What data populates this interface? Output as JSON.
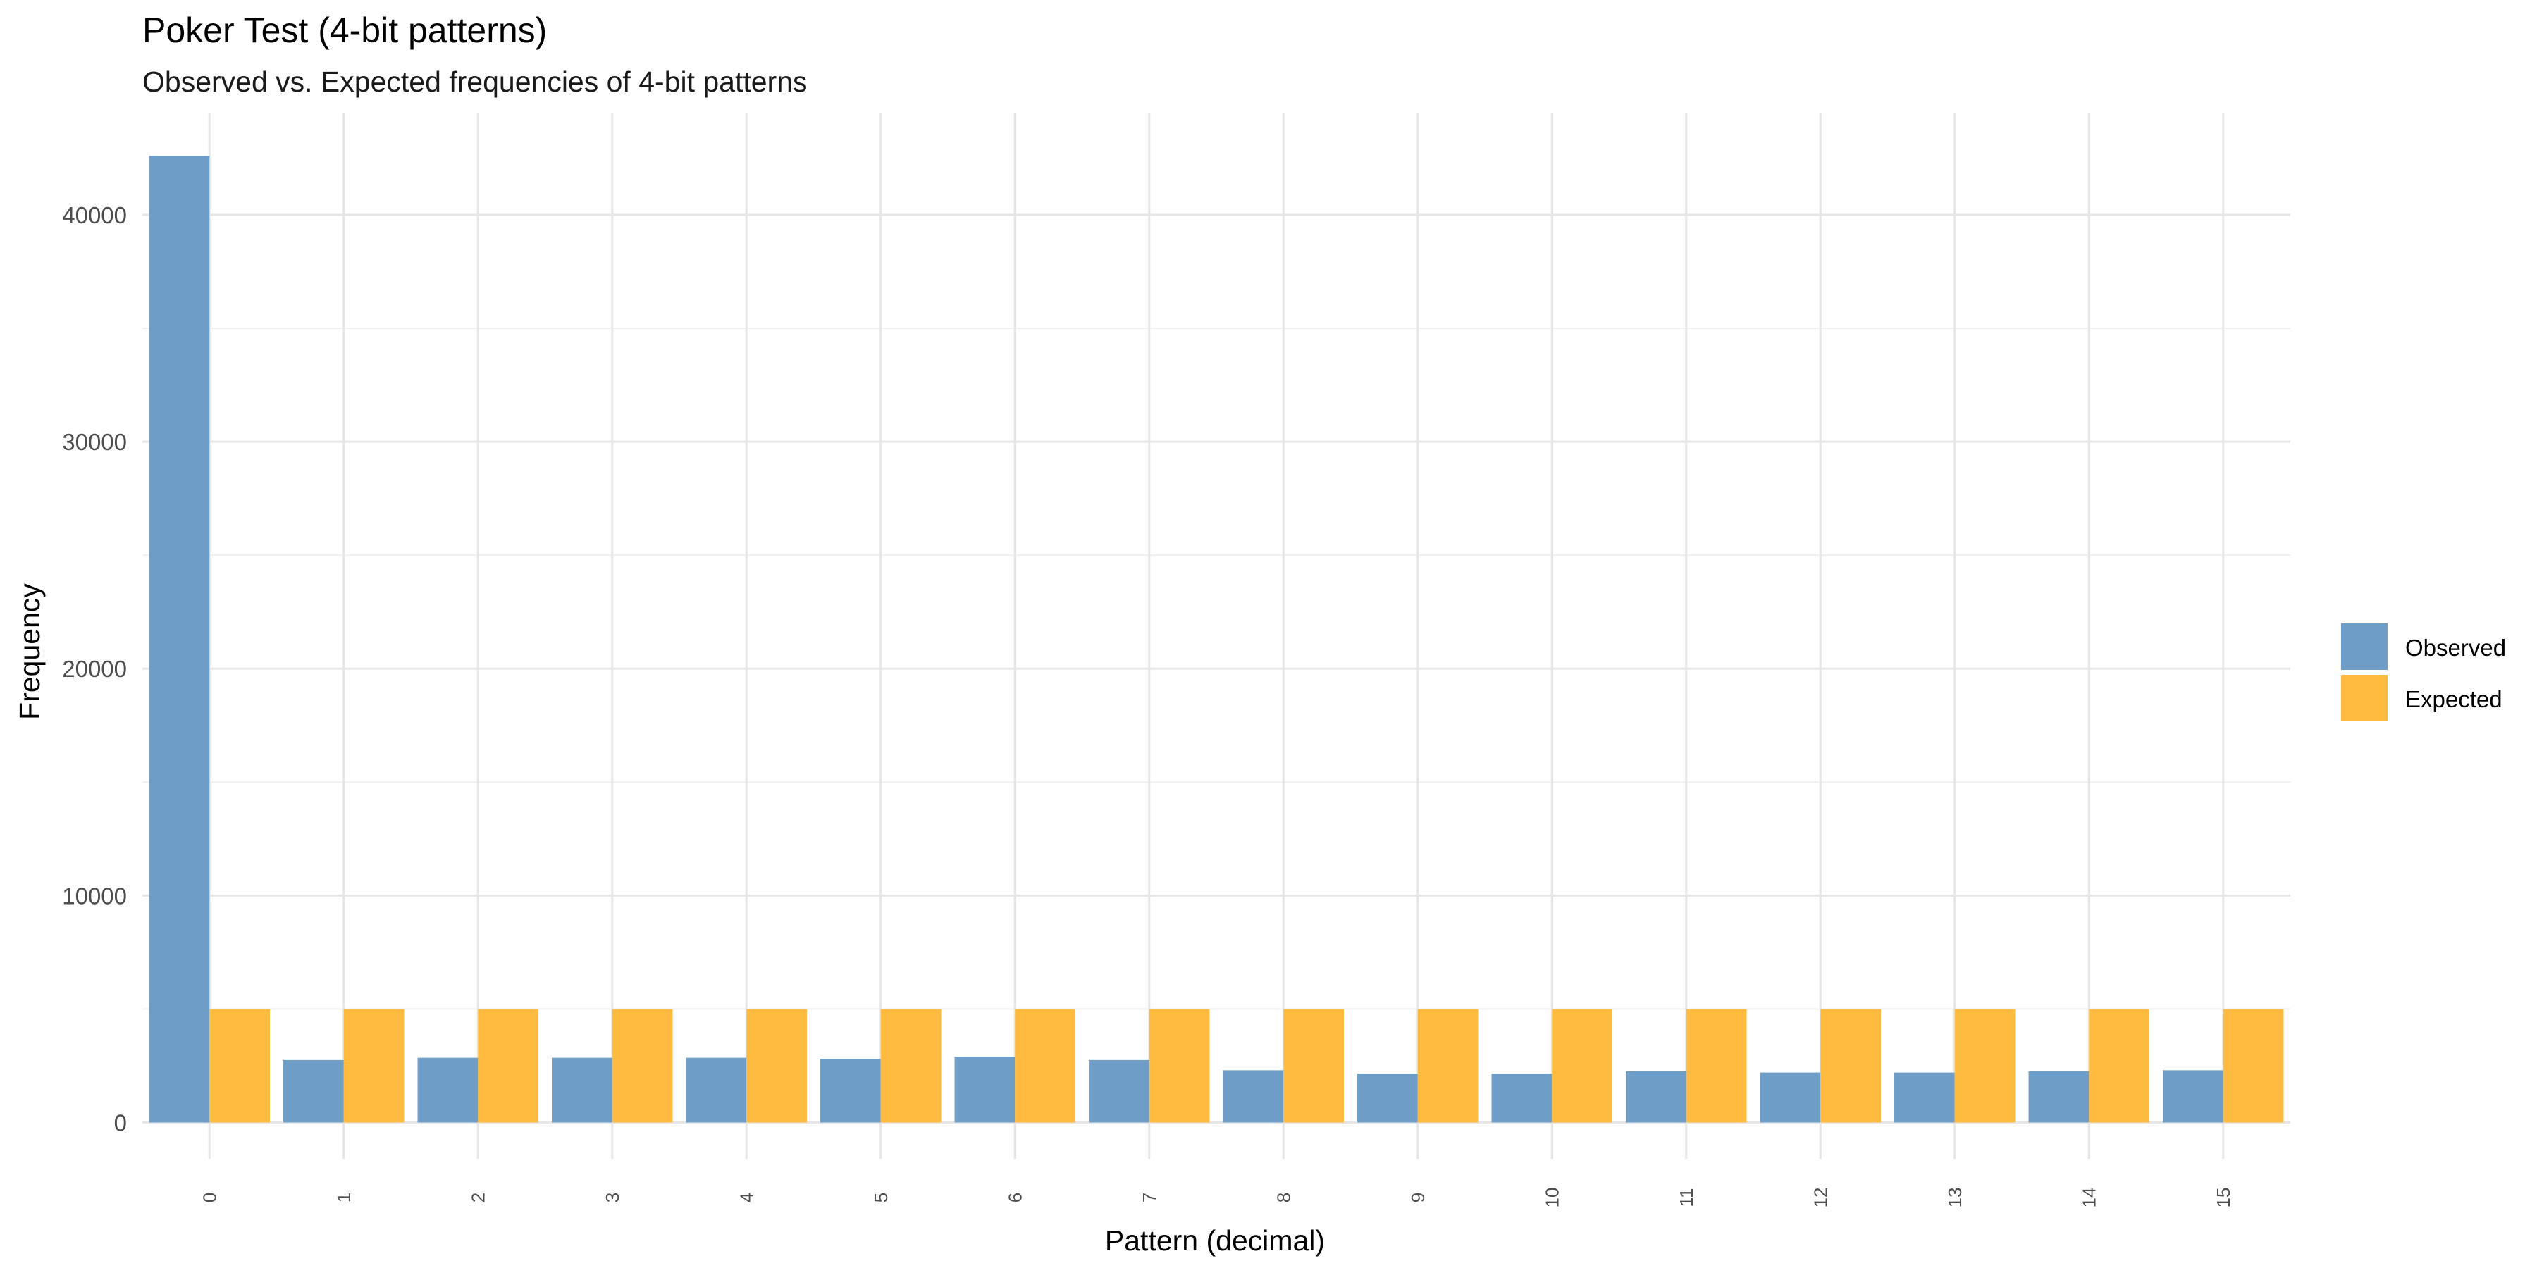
{
  "chart_data": {
    "type": "bar",
    "title": "Poker Test (4-bit patterns)",
    "subtitle": "Observed vs. Expected frequencies of 4-bit patterns",
    "xlabel": "Pattern (decimal)",
    "ylabel": "Frequency",
    "categories": [
      "0",
      "1",
      "2",
      "3",
      "4",
      "5",
      "6",
      "7",
      "8",
      "9",
      "10",
      "11",
      "12",
      "13",
      "14",
      "15"
    ],
    "series": [
      {
        "name": "Observed",
        "color": "#6E9EC8",
        "values": [
          42600,
          2750,
          2850,
          2850,
          2850,
          2800,
          2900,
          2750,
          2300,
          2150,
          2150,
          2250,
          2200,
          2200,
          2250,
          2300
        ]
      },
      {
        "name": "Expected",
        "color": "#FFBB3F",
        "values": [
          5000,
          5000,
          5000,
          5000,
          5000,
          5000,
          5000,
          5000,
          5000,
          5000,
          5000,
          5000,
          5000,
          5000,
          5000,
          5000
        ]
      }
    ],
    "yticks": [
      0,
      10000,
      20000,
      30000,
      40000
    ],
    "ylim": [
      -1600,
      44500
    ],
    "grid": true,
    "legend": "right"
  }
}
